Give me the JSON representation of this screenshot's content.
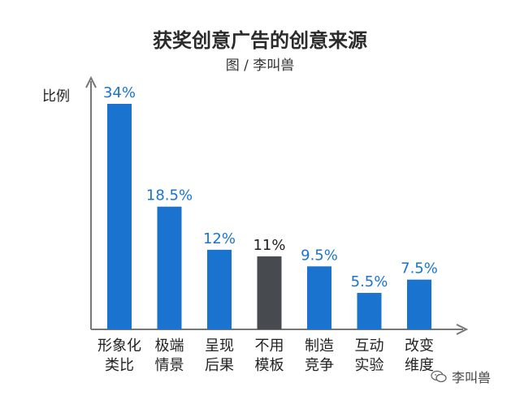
{
  "chart_data": {
    "type": "bar",
    "title": "获奖创意广告的创意来源",
    "subtitle": "图 / 李叫兽",
    "ylabel": "比例",
    "xlabel": "",
    "categories": [
      [
        "形象化",
        "类比"
      ],
      [
        "极端",
        "情景"
      ],
      [
        "呈现",
        "后果"
      ],
      [
        "不用",
        "模板"
      ],
      [
        "制造",
        "竞争"
      ],
      [
        "互动",
        "实验"
      ],
      [
        "改变",
        "维度"
      ]
    ],
    "values": [
      34,
      18.5,
      12,
      11,
      9.5,
      5.5,
      7.5
    ],
    "value_labels": [
      "34%",
      "18.5%",
      "12%",
      "11%",
      "9.5%",
      "5.5%",
      "7.5%"
    ],
    "bar_colors": [
      "#1a74cf",
      "#1a74cf",
      "#1a74cf",
      "#474a4f",
      "#1a74cf",
      "#1a74cf",
      "#1a74cf"
    ],
    "label_colors": [
      "#1a74cf",
      "#1a74cf",
      "#1a74cf",
      "#222222",
      "#1a74cf",
      "#1a74cf",
      "#1a74cf"
    ],
    "ylim": [
      0,
      34
    ],
    "grid": false,
    "legend": "none"
  },
  "watermark": {
    "text": "李叫兽",
    "icon": "wechat-icon"
  },
  "colors": {
    "axis": "#777777",
    "text": "#222222"
  }
}
